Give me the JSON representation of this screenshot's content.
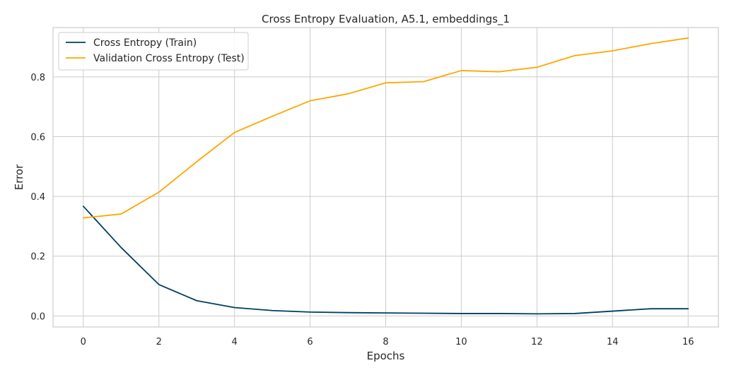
{
  "chart_data": {
    "type": "line",
    "title": "Cross Entropy Evaluation, A5.1, embeddings_1",
    "xlabel": "Epochs",
    "ylabel": "Error",
    "x": [
      0,
      1,
      2,
      3,
      4,
      5,
      6,
      7,
      8,
      9,
      10,
      11,
      12,
      13,
      14,
      15,
      16
    ],
    "xlim": [
      -0.8,
      16.8
    ],
    "ylim": [
      -0.037,
      0.965
    ],
    "xticks": [
      0,
      2,
      4,
      6,
      8,
      10,
      12,
      14,
      16
    ],
    "yticks": [
      0.0,
      0.2,
      0.4,
      0.6,
      0.8
    ],
    "ytick_labels": [
      "0.0",
      "0.2",
      "0.4",
      "0.6",
      "0.8"
    ],
    "grid": true,
    "legend_position": "top-left",
    "series": [
      {
        "name": "Cross Entropy (Train)",
        "color": "#003f5c",
        "values": [
          0.367,
          0.229,
          0.105,
          0.051,
          0.028,
          0.018,
          0.013,
          0.011,
          0.01,
          0.009,
          0.008,
          0.008,
          0.007,
          0.008,
          0.016,
          0.024,
          0.024
        ]
      },
      {
        "name": "Validation Cross Entropy (Test)",
        "color": "#ffa600",
        "values": [
          0.328,
          0.341,
          0.414,
          0.516,
          0.614,
          0.668,
          0.72,
          0.743,
          0.78,
          0.784,
          0.821,
          0.817,
          0.832,
          0.871,
          0.887,
          0.911,
          0.93
        ]
      }
    ]
  }
}
